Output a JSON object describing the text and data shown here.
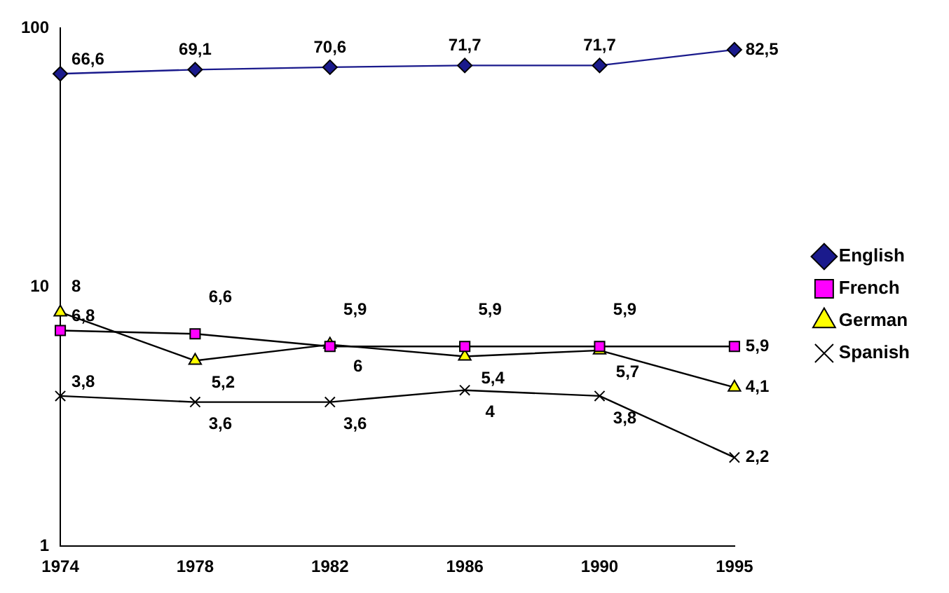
{
  "chart_data": {
    "type": "line",
    "categories": [
      "1974",
      "1978",
      "1982",
      "1986",
      "1990",
      "1995"
    ],
    "series": [
      {
        "name": "English",
        "color": "#1a1a8c",
        "marker": "diamond",
        "values": [
          66.6,
          69.1,
          70.6,
          71.7,
          71.7,
          82.5
        ],
        "value_labels": [
          "66,6",
          "69,1",
          "70,6",
          "71,7",
          "71,7",
          "82,5"
        ]
      },
      {
        "name": "French",
        "color": "#ff00ff",
        "marker": "square",
        "values": [
          6.8,
          6.6,
          5.9,
          5.9,
          5.9,
          5.9
        ],
        "value_labels": [
          "6,8",
          "6,6",
          "5,9",
          "5,9",
          "5,9",
          "5,9"
        ]
      },
      {
        "name": "German",
        "color": "#ffff00",
        "marker": "triangle",
        "values": [
          8,
          5.2,
          6,
          5.4,
          5.7,
          4.1
        ],
        "value_labels": [
          "8",
          "5,2",
          "6",
          "5,4",
          "5,7",
          "4,1"
        ]
      },
      {
        "name": "Spanish",
        "color": "#000000",
        "marker": "cross",
        "values": [
          3.8,
          3.6,
          3.6,
          4,
          3.8,
          2.2
        ],
        "value_labels": [
          "3,8",
          "3,6",
          "3,6",
          "4",
          "3,8",
          "2,2"
        ]
      }
    ],
    "log": true,
    "ylim": [
      1,
      100
    ],
    "yticks": [
      1,
      10,
      100
    ],
    "grid": false,
    "legend": "right"
  }
}
